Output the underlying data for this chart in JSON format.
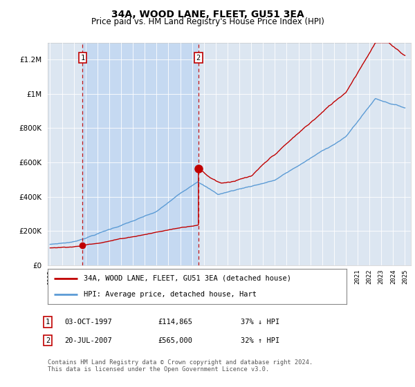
{
  "title": "34A, WOOD LANE, FLEET, GU51 3EA",
  "subtitle": "Price paid vs. HM Land Registry's House Price Index (HPI)",
  "legend_line1": "34A, WOOD LANE, FLEET, GU51 3EA (detached house)",
  "legend_line2": "HPI: Average price, detached house, Hart",
  "transaction1_date": "03-OCT-1997",
  "transaction1_price": "£114,865",
  "transaction1_hpi": "37% ↓ HPI",
  "transaction2_date": "20-JUL-2007",
  "transaction2_price": "£565,000",
  "transaction2_hpi": "32% ↑ HPI",
  "footer": "Contains HM Land Registry data © Crown copyright and database right 2024.\nThis data is licensed under the Open Government Licence v3.0.",
  "hpi_color": "#5b9bd5",
  "price_color": "#c00000",
  "dashed_line_color": "#c00000",
  "plot_bg_color": "#dce6f1",
  "shade_color": "#c5d9f1",
  "ylim": [
    0,
    1300000
  ],
  "yticks": [
    0,
    200000,
    400000,
    600000,
    800000,
    1000000,
    1200000
  ],
  "xlim_start": 1994.8,
  "xlim_end": 2025.5,
  "transaction1_x": 1997.75,
  "transaction2_x": 2007.54,
  "transaction1_y": 114865,
  "transaction2_y": 565000
}
